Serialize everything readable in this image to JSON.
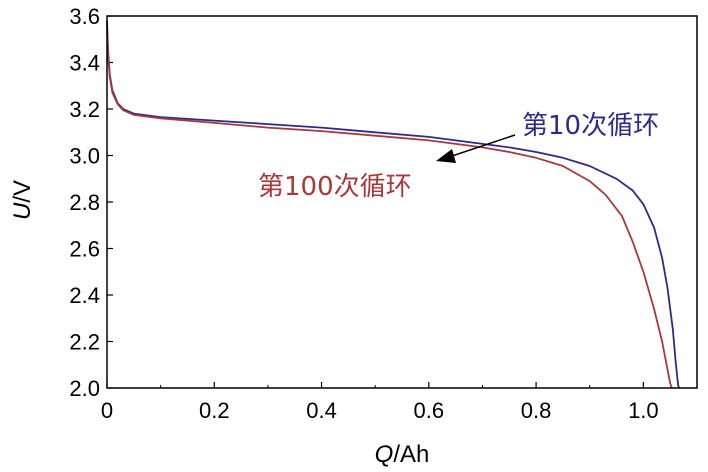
{
  "chart_data": {
    "type": "line",
    "xlabel_var": "Q",
    "xlabel_unit": "/Ah",
    "ylabel_var": "U",
    "ylabel_unit": "/V",
    "xlim": [
      0,
      1.1
    ],
    "ylim": [
      2.0,
      3.6
    ],
    "x_ticks": [
      0,
      0.2,
      0.4,
      0.6,
      0.8,
      1.0
    ],
    "x_tick_labels": [
      "0",
      "0.2",
      "0.4",
      "0.6",
      "0.8",
      "1.0"
    ],
    "y_ticks": [
      2.0,
      2.2,
      2.4,
      2.6,
      2.8,
      3.0,
      3.2,
      3.4,
      3.6
    ],
    "y_tick_labels": [
      "2.0",
      "2.2",
      "2.4",
      "2.6",
      "2.8",
      "3.0",
      "3.2",
      "3.4",
      "3.6"
    ],
    "grid": false,
    "colors": {
      "cycle10": "#2b2b8c",
      "cycle100": "#a8383a",
      "axis": "#000000"
    },
    "series": [
      {
        "name": "第10次循环",
        "color": "#2b2b8c",
        "x": [
          0,
          0.002,
          0.005,
          0.01,
          0.02,
          0.03,
          0.05,
          0.1,
          0.2,
          0.3,
          0.4,
          0.5,
          0.6,
          0.7,
          0.75,
          0.8,
          0.85,
          0.9,
          0.95,
          0.98,
          1.0,
          1.02,
          1.035,
          1.045,
          1.055,
          1.06,
          1.063,
          1.065,
          1.067
        ],
        "y": [
          3.58,
          3.45,
          3.35,
          3.28,
          3.225,
          3.2,
          3.18,
          3.165,
          3.15,
          3.135,
          3.12,
          3.1,
          3.08,
          3.05,
          3.035,
          3.015,
          2.99,
          2.955,
          2.9,
          2.85,
          2.79,
          2.69,
          2.56,
          2.43,
          2.25,
          2.12,
          2.05,
          2.01,
          2.0
        ]
      },
      {
        "name": "第100次循环",
        "color": "#a8383a",
        "x": [
          0,
          0.002,
          0.005,
          0.01,
          0.02,
          0.03,
          0.05,
          0.1,
          0.2,
          0.3,
          0.4,
          0.5,
          0.6,
          0.7,
          0.75,
          0.8,
          0.85,
          0.9,
          0.93,
          0.96,
          0.98,
          1.0,
          1.02,
          1.035,
          1.045,
          1.05,
          1.053
        ],
        "y": [
          3.55,
          3.43,
          3.34,
          3.27,
          3.22,
          3.195,
          3.175,
          3.16,
          3.14,
          3.12,
          3.105,
          3.085,
          3.065,
          3.035,
          3.015,
          2.99,
          2.955,
          2.89,
          2.83,
          2.74,
          2.63,
          2.5,
          2.34,
          2.2,
          2.08,
          2.02,
          2.0
        ]
      }
    ],
    "annotations": [
      {
        "text": "第10次循环",
        "color": "#2b2b8c"
      },
      {
        "text": "第100次循环",
        "color": "#a8383a"
      }
    ]
  }
}
